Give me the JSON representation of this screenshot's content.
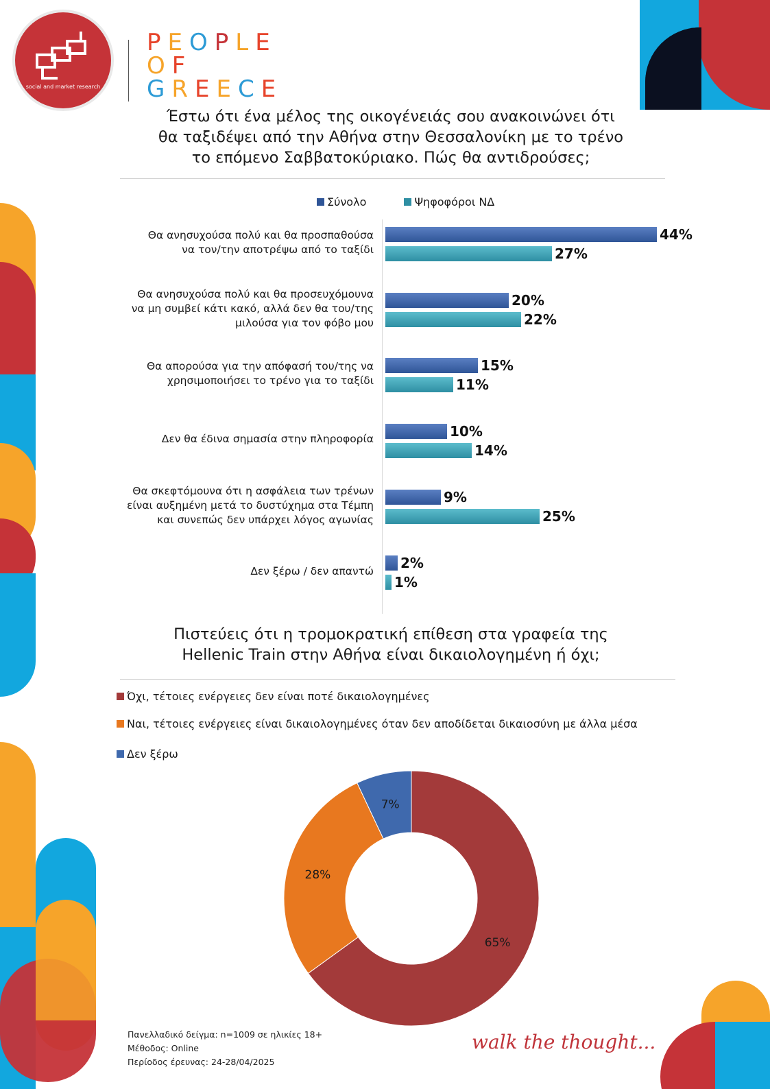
{
  "brand": {
    "logo_subtitle": "social and market research",
    "wordmark": [
      {
        "text": "PEOPLE",
        "colors": [
          "#e7442b",
          "#f6a42a",
          "#2d9bd6",
          "#c53338",
          "#f6a42a",
          "#e7442b"
        ]
      },
      {
        "text": "OF",
        "colors": [
          "#f6a42a",
          "#e7442b"
        ]
      },
      {
        "text": "GREECE",
        "colors": [
          "#2d9bd6",
          "#f6a42a",
          "#e7442b",
          "#f6a42a",
          "#2d9bd6",
          "#e7442b"
        ]
      }
    ],
    "tagline": "walk the thought..."
  },
  "colors": {
    "total": "#2f5597",
    "nd": "#2e8fa3",
    "red": "#a33a3a",
    "orange": "#e8781f",
    "blue": "#3f69ad",
    "accent_red": "#c53338",
    "accent_orange": "#f6a42a",
    "accent_blue": "#12a7de",
    "accent_navy": "#0b1020"
  },
  "q1": {
    "title_lines": [
      "Έστω ότι ένα μέλος της οικογένειάς σου ανακοινώνει ότι",
      "θα ταξιδέψει από την Αθήνα στην Θεσσαλονίκη με το τρένο",
      "το επόμενο Σαββατοκύριακο. Πώς θα αντιδρούσες;"
    ]
  },
  "q2": {
    "title_lines": [
      "Πιστεύεις ότι η τρομοκρατική επίθεση στα γραφεία της",
      "Hellenic Train στην Αθήνα είναι δικαιολογημένη ή όχι;"
    ]
  },
  "chart_data": [
    {
      "type": "bar",
      "orientation": "horizontal",
      "categories": [
        [
          "Θα ανησυχούσα πολύ και θα προσπαθούσα",
          "να τον/την αποτρέψω από το ταξίδι"
        ],
        [
          "Θα ανησυχούσα πολύ και θα προσευχόμουνα",
          "να μη συμβεί κάτι κακό, αλλά δεν θα του/της",
          "μιλούσα για τον φόβο μου"
        ],
        [
          "Θα απορούσα για την απόφασή του/της να",
          "χρησιμοποιήσει το τρένο για το ταξίδι"
        ],
        [
          "Δεν θα έδινα σημασία στην πληροφορία"
        ],
        [
          "Θα σκεφτόμουνα ότι η ασφάλεια των τρένων",
          "είναι αυξημένη μετά το δυστύχημα στα Τέμπη",
          "και συνεπώς δεν υπάρχει λόγος αγωνίας"
        ],
        [
          "Δεν ξέρω / δεν απαντώ"
        ]
      ],
      "series": [
        {
          "name": "Σύνολο",
          "values": [
            44,
            20,
            15,
            10,
            9,
            2
          ],
          "labels": [
            "44%",
            "20%",
            "15%",
            "10%",
            "9%",
            "2%"
          ]
        },
        {
          "name": "Ψηφοφόροι ΝΔ",
          "values": [
            27,
            22,
            11,
            14,
            25,
            1
          ],
          "labels": [
            "27%",
            "22%",
            "11%",
            "14%",
            "25%",
            "1%"
          ]
        }
      ],
      "legend_position": "top",
      "grid": false
    },
    {
      "type": "pie",
      "donut": true,
      "legend_position": "top",
      "slices": [
        {
          "label": "Όχι, τέτοιες ενέργειες δεν είναι ποτέ δικαιολογημένες",
          "value": 65,
          "value_label": "65%"
        },
        {
          "label": "Ναι, τέτοιες ενέργειες είναι δικαιολογημένες όταν δεν αποδίδεται δικαιοσύνη με άλλα μέσα",
          "value": 28,
          "value_label": "28%"
        },
        {
          "label": "Δεν ξέρω",
          "value": 7,
          "value_label": "7%"
        }
      ]
    }
  ],
  "footer": {
    "lines": [
      "Πανελλαδικό δείγμα: n=1009 σε ηλικίες 18+",
      "Μέθοδος: Online",
      "Περίοδος έρευνας: 24-28/04/2025"
    ]
  }
}
